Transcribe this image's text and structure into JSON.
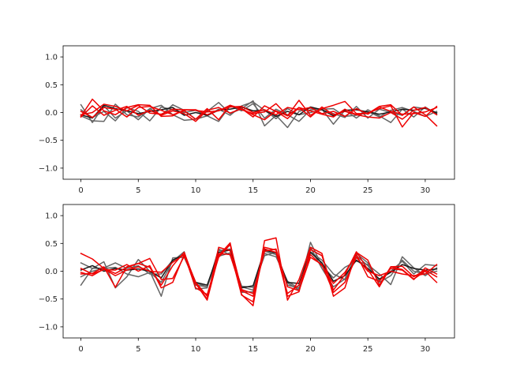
{
  "chart_data": [
    {
      "type": "line",
      "xlim": [
        -1.55,
        32.55
      ],
      "ylim": [
        -1.2,
        1.2
      ],
      "xticks": [
        0,
        5,
        10,
        15,
        20,
        25,
        30
      ],
      "yticks": [
        -1.0,
        -0.5,
        0.0,
        0.5,
        1.0
      ],
      "xtick_labels": [
        "0",
        "5",
        "10",
        "15",
        "20",
        "25",
        "30"
      ],
      "ytick_labels": [
        "−1.0",
        "−0.5",
        "0.0",
        "0.5",
        "1.0"
      ],
      "grid": false,
      "x": [
        0,
        1,
        2,
        3,
        4,
        5,
        6,
        7,
        8,
        9,
        10,
        11,
        12,
        13,
        14,
        15,
        16,
        17,
        18,
        19,
        20,
        21,
        22,
        23,
        24,
        25,
        26,
        27,
        28,
        29,
        30,
        31
      ],
      "series": [
        {
          "color": "#666666",
          "values": [
            0.14,
            -0.18,
            0.12,
            -0.1,
            0.03,
            -0.13,
            0.07,
            0.13,
            -0.04,
            -0.14,
            -0.12,
            0.02,
            0.18,
            -0.02,
            0.07,
            0.21,
            -0.24,
            -0.05,
            -0.27,
            0.02,
            0.08,
            0.06,
            -0.21,
            0.04,
            -0.1,
            0.05,
            -0.06,
            -0.18,
            0.06,
            -0.08,
            0.1,
            -0.03
          ]
        },
        {
          "color": "#666666",
          "values": [
            -0.06,
            -0.15,
            -0.16,
            0.15,
            -0.04,
            -0.08,
            0.07,
            -0.05,
            0.14,
            0.04,
            -0.12,
            -0.06,
            -0.16,
            0.12,
            0.03,
            0.16,
            -0.1,
            0.06,
            -0.04,
            -0.16,
            0.05,
            0.06,
            0.07,
            -0.07,
            -0.05,
            0.02,
            -0.08,
            0.04,
            0.09,
            0.02,
            -0.07,
            0.02
          ]
        },
        {
          "color": "#666666",
          "values": [
            0.05,
            -0.09,
            0.02,
            -0.15,
            0.09,
            0.02,
            -0.15,
            0.1,
            0.05,
            0.0,
            0.04,
            -0.06,
            0.06,
            -0.05,
            0.12,
            0.19,
            0.04,
            -0.11,
            0.07,
            -0.04,
            0.0,
            0.05,
            -0.02,
            -0.09,
            0.11,
            -0.1,
            0.06,
            0.0,
            -0.05,
            0.1,
            0.07,
            0.0
          ]
        },
        {
          "color": "#1a1a1a",
          "values": [
            -0.04,
            -0.1,
            0.13,
            0.07,
            0.03,
            -0.02,
            0.02,
            0.05,
            0.09,
            -0.05,
            0.0,
            -0.05,
            0.04,
            0.06,
            0.1,
            0.03,
            0.04,
            -0.07,
            0.02,
            -0.04,
            0.1,
            0.05,
            -0.06,
            0.04,
            0.05,
            0.01,
            -0.03,
            0.01,
            0.06,
            0.04,
            0.08,
            -0.01
          ]
        },
        {
          "color": "#ee0000",
          "values": [
            -0.07,
            0.24,
            0.03,
            -0.04,
            0.09,
            0.14,
            0.13,
            -0.07,
            -0.06,
            0.05,
            0.04,
            0.01,
            0.03,
            0.13,
            0.05,
            -0.02,
            0.01,
            0.16,
            -0.06,
            0.22,
            -0.05,
            0.07,
            0.13,
            0.2,
            -0.02,
            -0.02,
            0.11,
            0.14,
            -0.05,
            0.1,
            -0.04,
            -0.24
          ]
        },
        {
          "color": "#ee0000",
          "values": [
            0.02,
            -0.09,
            0.09,
            0.06,
            -0.08,
            0.09,
            0.11,
            0.04,
            -0.04,
            0.03,
            -0.12,
            0.07,
            -0.13,
            0.13,
            0.07,
            -0.08,
            0.12,
            0.02,
            -0.11,
            0.09,
            -0.08,
            0.1,
            -0.04,
            0.02,
            -0.04,
            -0.08,
            -0.1,
            0.0,
            -0.12,
            0.04,
            0.09,
            -0.04
          ]
        },
        {
          "color": "#ee0000",
          "values": [
            -0.08,
            0.12,
            -0.05,
            0.04,
            0.11,
            -0.05,
            0.04,
            -0.05,
            0.03,
            -0.02,
            -0.16,
            0.04,
            0.09,
            -0.01,
            0.07,
            -0.04,
            -0.13,
            0.03,
            -0.06,
            0.09,
            0.03,
            -0.03,
            -0.08,
            0.06,
            -0.04,
            -0.01,
            0.07,
            0.12,
            -0.26,
            0.0,
            -0.07,
            0.11
          ]
        },
        {
          "color": "#ee0000",
          "values": [
            -0.04,
            0.0,
            0.15,
            0.11,
            0.03,
            0.13,
            -0.01,
            -0.03,
            0.06,
            0.05,
            0.05,
            -0.04,
            0.04,
            0.1,
            0.11,
            0.0,
            0.05,
            -0.04,
            0.09,
            0.05,
            0.09,
            -0.02,
            0.02,
            -0.07,
            0.07,
            -0.03,
            0.1,
            0.02,
            -0.03,
            -0.02,
            0.01,
            0.09
          ]
        }
      ]
    },
    {
      "type": "line",
      "xlim": [
        -1.55,
        32.55
      ],
      "ylim": [
        -1.2,
        1.2
      ],
      "xticks": [
        0,
        5,
        10,
        15,
        20,
        25,
        30
      ],
      "yticks": [
        -1.0,
        -0.5,
        0.0,
        0.5,
        1.0
      ],
      "xtick_labels": [
        "0",
        "5",
        "10",
        "15",
        "20",
        "25",
        "30"
      ],
      "ytick_labels": [
        "−1.0",
        "−0.5",
        "0.0",
        "0.5",
        "1.0"
      ],
      "grid": false,
      "x": [
        0,
        1,
        2,
        3,
        4,
        5,
        6,
        7,
        8,
        9,
        10,
        11,
        12,
        13,
        14,
        15,
        16,
        17,
        18,
        19,
        20,
        21,
        22,
        23,
        24,
        25,
        26,
        27,
        28,
        29,
        30,
        31
      ],
      "series": [
        {
          "color": "#666666",
          "values": [
            -0.25,
            0.05,
            0.17,
            -0.3,
            -0.1,
            0.21,
            0.0,
            -0.45,
            0.24,
            0.25,
            -0.21,
            -0.28,
            0.27,
            0.33,
            -0.28,
            -0.34,
            0.32,
            0.26,
            -0.18,
            -0.31,
            0.52,
            0.1,
            -0.12,
            0.07,
            0.18,
            0.12,
            -0.05,
            -0.24,
            0.26,
            0.06,
            -0.08,
            0.06
          ]
        },
        {
          "color": "#666666",
          "values": [
            -0.1,
            0.0,
            0.05,
            0.07,
            -0.05,
            -0.1,
            -0.02,
            -0.2,
            0.18,
            0.35,
            -0.32,
            -0.3,
            0.4,
            0.29,
            -0.27,
            -0.29,
            0.28,
            0.34,
            -0.21,
            -0.34,
            0.43,
            0.05,
            -0.28,
            -0.14,
            0.28,
            0.1,
            -0.16,
            0.0,
            0.18,
            -0.05,
            0.12,
            0.1
          ]
        },
        {
          "color": "#666666",
          "values": [
            0.15,
            0.05,
            0.06,
            0.15,
            0.05,
            0.1,
            -0.05,
            -0.05,
            0.2,
            0.3,
            -0.25,
            -0.28,
            0.37,
            0.4,
            -0.38,
            -0.37,
            0.36,
            0.3,
            -0.25,
            -0.3,
            0.35,
            0.2,
            -0.05,
            -0.15,
            0.32,
            0.15,
            -0.2,
            -0.08,
            0.2,
            0.0,
            -0.05,
            0.0
          ]
        },
        {
          "color": "#1a1a1a",
          "values": [
            0.02,
            0.1,
            0.0,
            0.05,
            0.02,
            0.04,
            0.0,
            -0.12,
            0.2,
            0.3,
            -0.2,
            -0.25,
            0.34,
            0.38,
            -0.3,
            -0.26,
            0.38,
            0.33,
            -0.2,
            -0.22,
            0.34,
            0.15,
            -0.18,
            -0.08,
            0.2,
            0.05,
            -0.14,
            -0.02,
            0.12,
            0.05,
            0.02,
            0.04
          ]
        },
        {
          "color": "#ee0000",
          "values": [
            0.32,
            0.22,
            0.05,
            -0.04,
            0.07,
            0.14,
            0.07,
            -0.25,
            0.1,
            0.34,
            -0.22,
            -0.52,
            0.28,
            0.51,
            -0.42,
            -0.62,
            0.55,
            0.6,
            -0.52,
            -0.15,
            0.43,
            0.32,
            -0.45,
            -0.3,
            0.34,
            0.2,
            -0.25,
            0.08,
            0.03,
            -0.14,
            0.0,
            -0.2
          ]
        },
        {
          "color": "#ee0000",
          "values": [
            -0.05,
            -0.04,
            0.08,
            -0.29,
            0.08,
            0.14,
            0.23,
            -0.15,
            -0.13,
            0.27,
            -0.22,
            -0.5,
            0.43,
            0.37,
            -0.43,
            -0.55,
            0.43,
            0.38,
            -0.45,
            -0.37,
            0.39,
            0.28,
            -0.34,
            -0.06,
            0.35,
            0.03,
            -0.28,
            0.08,
            0.09,
            -0.1,
            0.02,
            -0.1
          ]
        },
        {
          "color": "#ee0000",
          "values": [
            0.05,
            -0.05,
            0.03,
            0.02,
            0.12,
            0.0,
            0.1,
            -0.3,
            -0.2,
            0.3,
            -0.2,
            -0.45,
            0.32,
            0.3,
            -0.35,
            -0.45,
            0.36,
            0.4,
            -0.28,
            -0.35,
            0.25,
            0.12,
            -0.38,
            -0.2,
            0.25,
            0.0,
            -0.08,
            0.0,
            -0.05,
            -0.08,
            -0.05,
            0.12
          ]
        },
        {
          "color": "#ee0000",
          "values": [
            -0.02,
            -0.08,
            0.04,
            -0.08,
            0.02,
            0.08,
            0.0,
            -0.02,
            0.16,
            0.3,
            -0.3,
            -0.42,
            0.25,
            0.48,
            -0.33,
            -0.4,
            0.4,
            0.34,
            -0.4,
            -0.25,
            0.3,
            0.1,
            -0.22,
            -0.02,
            0.3,
            -0.1,
            -0.18,
            0.05,
            0.02,
            -0.15,
            0.06,
            -0.05
          ]
        }
      ]
    }
  ]
}
